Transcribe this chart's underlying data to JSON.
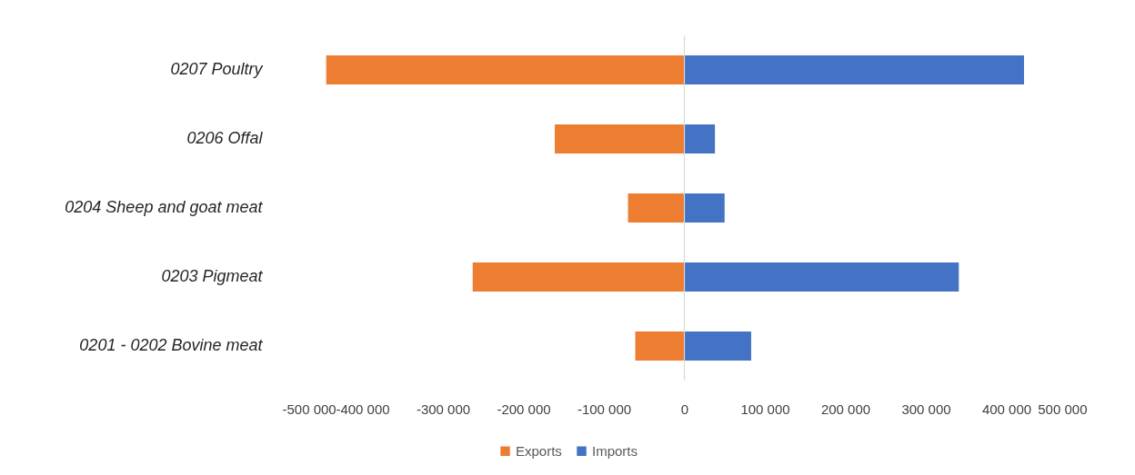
{
  "chart_data": {
    "type": "bar",
    "orientation": "horizontal",
    "stacked": true,
    "categories": [
      "0207 Poultry",
      "0206 Offal",
      "0204 Sheep and goat meat",
      "0203 Pigmeat",
      "0201 - 0202 Bovine meat"
    ],
    "series": [
      {
        "name": "Exports",
        "color": "#ed7d31",
        "values": [
          -445000,
          -161000,
          -70000,
          -263000,
          -61000
        ]
      },
      {
        "name": "Imports",
        "color": "#4472c4",
        "values": [
          422000,
          38000,
          50000,
          341000,
          83000
        ]
      }
    ],
    "xlim": [
      -500000,
      500000
    ],
    "xticks": [
      {
        "value": -500000,
        "label": "-500 000"
      },
      {
        "value": -400000,
        "label": "-400 000"
      },
      {
        "value": -300000,
        "label": "-300 000"
      },
      {
        "value": -200000,
        "label": "-200 000"
      },
      {
        "value": -100000,
        "label": "-100 000"
      },
      0,
      {
        "value": 100000,
        "label": "100 000"
      },
      {
        "value": 200000,
        "label": "200 000"
      },
      {
        "value": 300000,
        "label": "300 000"
      },
      {
        "value": 400000,
        "label": "400 000"
      },
      {
        "value": 500000,
        "label": "500 000"
      }
    ],
    "grid": false,
    "legend": "bottom",
    "ref_lines": [
      {
        "axis": "x",
        "value": 0,
        "color": "#d9d9d9"
      }
    ]
  }
}
